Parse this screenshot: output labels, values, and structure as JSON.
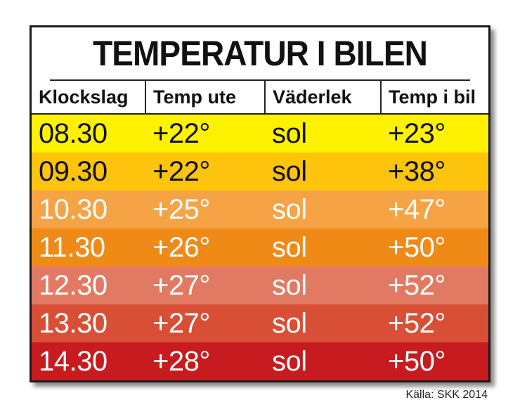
{
  "chart_data": {
    "type": "table",
    "title": "TEMPERATUR I BILEN",
    "columns": [
      "Klockslag",
      "Temp ute",
      "Väderlek",
      "Temp i bil"
    ],
    "rows": [
      {
        "time": "08.30",
        "temp_out": "+22°",
        "weather": "sol",
        "temp_car": "+23°",
        "bg": "#fff200",
        "fg": "#111111"
      },
      {
        "time": "09.30",
        "temp_out": "+22°",
        "weather": "sol",
        "temp_car": "+38°",
        "bg": "#fcc40d",
        "fg": "#111111"
      },
      {
        "time": "10.30",
        "temp_out": "+25°",
        "weather": "sol",
        "temp_car": "+47°",
        "bg": "#f6a346",
        "fg": "#ffffff"
      },
      {
        "time": "11.30",
        "temp_out": "+26°",
        "weather": "sol",
        "temp_car": "+50°",
        "bg": "#f08a17",
        "fg": "#ffffff"
      },
      {
        "time": "12.30",
        "temp_out": "+27°",
        "weather": "sol",
        "temp_car": "+52°",
        "bg": "#e27a63",
        "fg": "#ffffff"
      },
      {
        "time": "13.30",
        "temp_out": "+27°",
        "weather": "sol",
        "temp_car": "+52°",
        "bg": "#d94f36",
        "fg": "#ffffff"
      },
      {
        "time": "14.30",
        "temp_out": "+28°",
        "weather": "sol",
        "temp_car": "+50°",
        "bg": "#c81b1f",
        "fg": "#ffffff"
      }
    ],
    "source": "Källa: SKK 2014"
  }
}
